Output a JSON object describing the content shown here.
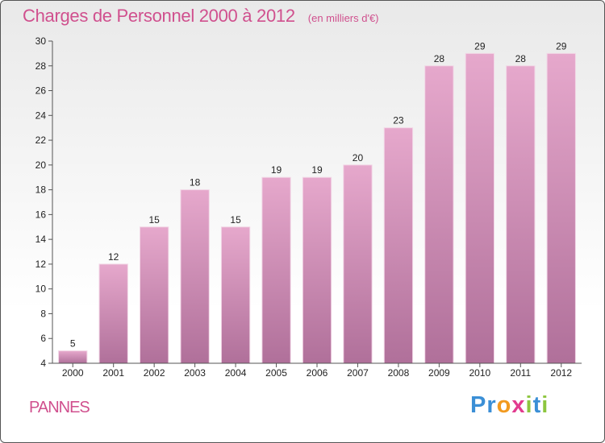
{
  "header": {
    "title": "Charges de Personnel 2000 à 2012",
    "subtitle": "(en milliers d'€)"
  },
  "footer": {
    "commune": "PANNES",
    "logo": {
      "text": "Proxiti",
      "letters": [
        {
          "ch": "P",
          "color": "#3b8fd6"
        },
        {
          "ch": "r",
          "color": "#3b8fd6"
        },
        {
          "ch": "o",
          "color": "#f29a1f"
        },
        {
          "ch": "x",
          "color": "#e23b8f"
        },
        {
          "ch": "i",
          "color": "#8dc63f"
        },
        {
          "ch": "t",
          "color": "#3b8fd6"
        },
        {
          "ch": "i",
          "color": "#8dc63f"
        }
      ]
    }
  },
  "colors": {
    "accent": "#d0508e",
    "bar_top": "#e6a8cc",
    "bar_bottom": "#b0709a"
  },
  "chart_data": {
    "type": "bar",
    "title": "Charges de Personnel 2000 à 2012",
    "subtitle": "(en milliers d'€)",
    "categories": [
      "2000",
      "2001",
      "2002",
      "2003",
      "2004",
      "2005",
      "2006",
      "2007",
      "2008",
      "2009",
      "2010",
      "2011",
      "2012"
    ],
    "values": [
      5,
      12,
      15,
      18,
      15,
      19,
      19,
      20,
      23,
      28,
      29,
      28,
      29
    ],
    "ylim": [
      4,
      30
    ],
    "yticks": [
      4,
      6,
      8,
      10,
      12,
      14,
      16,
      18,
      20,
      22,
      24,
      26,
      28,
      30
    ],
    "grid": false,
    "legend": "none"
  }
}
